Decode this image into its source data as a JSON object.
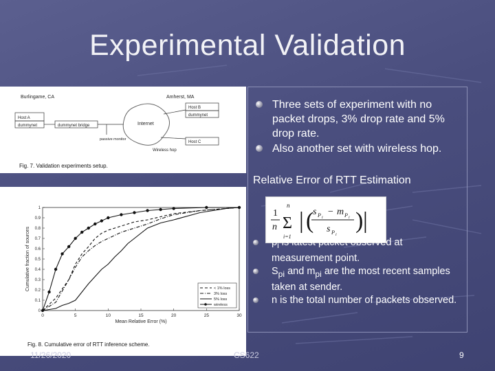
{
  "slide": {
    "title": "Experimental Validation"
  },
  "bullets": [
    "Three sets of experiment with no packet drops, 3% drop rate and 5% drop rate.",
    "Also another set with wireless hop."
  ],
  "section_heading": "Relative Error of RTT Estimation",
  "sub_bullets": {
    "b1": {
      "main": "p",
      "sub": "i",
      "rest": " is latest packet observed at measurement point."
    },
    "b2": {
      "s": "S",
      "s_sub": "pi",
      "and": " and m",
      "m_sub": "pi",
      "rest": " are the most recent samples taken at sender."
    },
    "b3": {
      "text": "n is the total number of packets observed."
    }
  },
  "figure7": {
    "caption": "Fig. 7.   Validation experiments setup.",
    "labels": {
      "loc_left": "Burlingame, CA",
      "loc_right": "Amherst, MA",
      "host_a": "Host A",
      "dummynet_a": "dummynet",
      "dummynet_bridge": "dummynet bridge",
      "internet": "Internet",
      "passive_monitor": "passive monitor",
      "host_b": "Host B",
      "dummynet_b": "dummynet",
      "host_c": "Host C",
      "wireless_hop": "Wireless hop"
    }
  },
  "figure8": {
    "caption": "Fig. 8.   Cumulative error of RTT inference scheme.",
    "chart_data": {
      "type": "line",
      "title": "",
      "xlabel": "Mean Relative Error (%)",
      "ylabel": "Cumulative fraction of sources",
      "xlim": [
        0,
        30
      ],
      "ylim": [
        0,
        1
      ],
      "xticks": [
        "0",
        "5",
        "10",
        "15",
        "20",
        "25",
        "30"
      ],
      "yticks": [
        "0",
        "0.1",
        "0.2",
        "0.3",
        "0.4",
        "0.5",
        "0.6",
        "0.7",
        "0.8",
        "0.9",
        "1"
      ],
      "legend_position": "bottom-right",
      "grid": false,
      "series": [
        {
          "name": "< 1% loss",
          "style": "dash",
          "x": [
            0,
            2,
            4,
            5,
            6,
            7,
            8,
            9,
            10,
            12,
            14,
            16,
            18,
            20,
            24,
            28,
            30
          ],
          "y": [
            0,
            0.12,
            0.3,
            0.45,
            0.55,
            0.62,
            0.7,
            0.75,
            0.78,
            0.82,
            0.86,
            0.88,
            0.91,
            0.94,
            0.97,
            0.99,
            1.0
          ]
        },
        {
          "name": "3% loss",
          "style": "dashdot",
          "x": [
            0,
            2,
            4,
            5,
            6,
            7,
            8,
            9,
            10,
            11,
            12,
            14,
            16,
            18,
            20,
            24,
            28,
            30
          ],
          "y": [
            0,
            0.08,
            0.3,
            0.42,
            0.52,
            0.58,
            0.63,
            0.67,
            0.7,
            0.73,
            0.76,
            0.8,
            0.84,
            0.89,
            0.93,
            0.97,
            0.99,
            1.0
          ]
        },
        {
          "name": "5% loss",
          "style": "solid",
          "x": [
            0,
            2,
            3,
            4,
            5,
            6,
            7,
            8,
            9,
            10,
            11,
            12,
            13,
            14,
            16,
            18,
            20,
            24,
            28,
            30
          ],
          "y": [
            0,
            0.02,
            0.05,
            0.07,
            0.1,
            0.18,
            0.26,
            0.33,
            0.4,
            0.45,
            0.52,
            0.58,
            0.65,
            0.7,
            0.8,
            0.85,
            0.88,
            0.95,
            0.99,
            1.0
          ]
        },
        {
          "name": "wireless",
          "style": "solid-marker",
          "x": [
            0,
            1,
            2,
            3,
            4,
            5,
            6,
            7,
            8,
            9,
            10,
            12,
            14,
            16,
            18,
            20,
            25,
            30
          ],
          "y": [
            0,
            0.18,
            0.4,
            0.55,
            0.62,
            0.7,
            0.76,
            0.8,
            0.84,
            0.87,
            0.9,
            0.93,
            0.95,
            0.97,
            0.98,
            0.99,
            1.0,
            1.0
          ]
        }
      ]
    }
  },
  "formula": {
    "numerator": "1",
    "denominator": "n",
    "sum_upper": "n",
    "sum_lower": "i=1",
    "abs_num_s": "s",
    "abs_num_s_sub": "P",
    "abs_num_s_subsub": "i",
    "abs_num_minus": "−",
    "abs_num_m": "m",
    "abs_num_m_sub": "P",
    "abs_num_m_subsub": "i",
    "abs_den_s": "s",
    "abs_den_s_sub": "P",
    "abs_den_s_subsub": "i"
  },
  "footer": {
    "date": "11/26/2020",
    "course": "CS622",
    "page": "9"
  },
  "colors": {
    "background": "#4a4e7e",
    "text": "#ffffff"
  }
}
